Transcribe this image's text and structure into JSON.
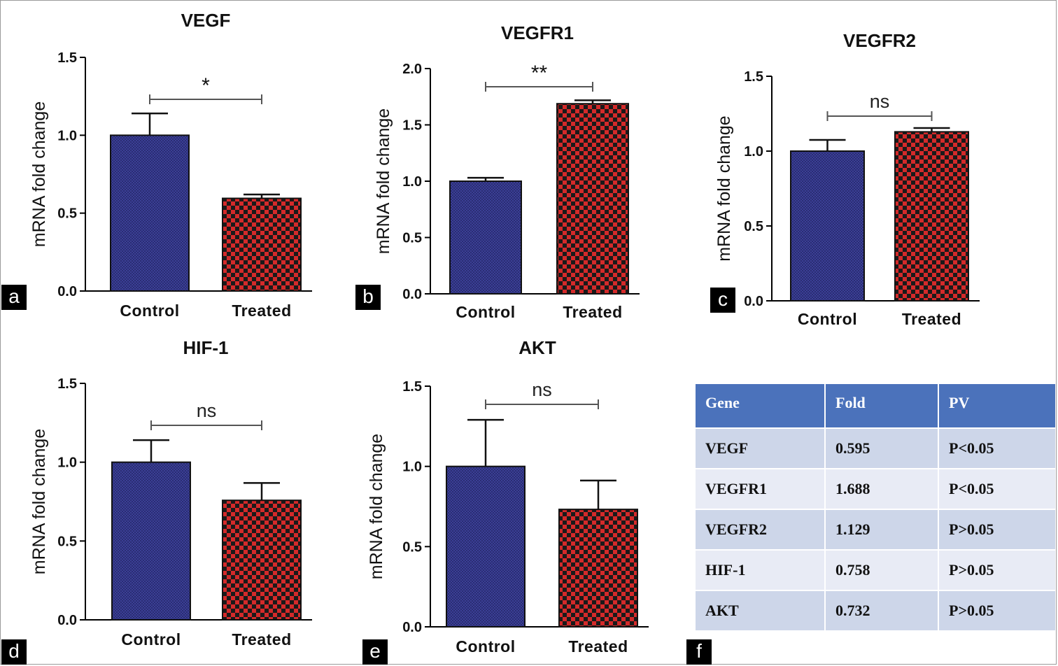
{
  "chart_data": [
    {
      "id": "a",
      "type": "bar",
      "title": "VEGF",
      "categories": [
        "Control",
        "Treated"
      ],
      "values": [
        1.0,
        0.595
      ],
      "errors": [
        0.14,
        0.025
      ],
      "ylabel": "mRNA fold change",
      "xlabel": "",
      "ylim": [
        0,
        1.5
      ],
      "yticks": [
        "0.0",
        "0.5",
        "1.0",
        "1.5"
      ],
      "significance": "*",
      "panel_label": "a"
    },
    {
      "id": "b",
      "type": "bar",
      "title": "VEGFR1",
      "categories": [
        "Control",
        "Treated"
      ],
      "values": [
        1.0,
        1.688
      ],
      "errors": [
        0.03,
        0.03
      ],
      "ylabel": "mRNA fold change",
      "xlabel": "",
      "ylim": [
        0,
        2.0
      ],
      "yticks": [
        "0.0",
        "0.5",
        "1.0",
        "1.5",
        "2.0"
      ],
      "significance": "**",
      "panel_label": "b"
    },
    {
      "id": "c",
      "type": "bar",
      "title": "VEGFR2",
      "categories": [
        "Control",
        "Treated"
      ],
      "values": [
        1.0,
        1.129
      ],
      "errors": [
        0.075,
        0.025
      ],
      "ylabel": "mRNA fold change",
      "xlabel": "",
      "ylim": [
        0,
        1.5
      ],
      "yticks": [
        "0.0",
        "0.5",
        "1.0",
        "1.5"
      ],
      "significance": "ns",
      "panel_label": "c"
    },
    {
      "id": "d",
      "type": "bar",
      "title": "HIF-1",
      "categories": [
        "Control",
        "Treated"
      ],
      "values": [
        1.0,
        0.758
      ],
      "errors": [
        0.14,
        0.11
      ],
      "ylabel": "mRNA fold change",
      "xlabel": "",
      "ylim": [
        0,
        1.5
      ],
      "yticks": [
        "0.0",
        "0.5",
        "1.0",
        "1.5"
      ],
      "significance": "ns",
      "panel_label": "d"
    },
    {
      "id": "e",
      "type": "bar",
      "title": "AKT",
      "categories": [
        "Control",
        "Treated"
      ],
      "values": [
        1.0,
        0.732
      ],
      "errors": [
        0.29,
        0.18
      ],
      "ylabel": "mRNA fold change",
      "xlabel": "",
      "ylim": [
        0,
        1.5
      ],
      "yticks": [
        "0.0",
        "0.5",
        "1.0",
        "1.5"
      ],
      "significance": "ns",
      "panel_label": "e"
    },
    {
      "id": "f",
      "type": "table",
      "headers": [
        "Gene",
        "Fold",
        "PV"
      ],
      "rows": [
        [
          "VEGF",
          "0.595",
          "P<0.05"
        ],
        [
          "VEGFR1",
          "1.688",
          "P<0.05"
        ],
        [
          "VEGFR2",
          "1.129",
          "P>0.05"
        ],
        [
          "HIF-1",
          "0.758",
          "P>0.05"
        ],
        [
          "AKT",
          "0.732",
          "P>0.05"
        ]
      ],
      "panel_label": "f"
    }
  ],
  "colors": {
    "control_fill": "#3b3f96",
    "control_pattern": "#2a2d73",
    "treated_fill": "#d42a2a",
    "treated_pattern": "#1a1a1a",
    "axis": "#000000",
    "bracket": "#555555",
    "table_header": "#4b72bb",
    "table_row_odd": "#cdd6e9",
    "table_row_even": "#e8ebf5"
  }
}
